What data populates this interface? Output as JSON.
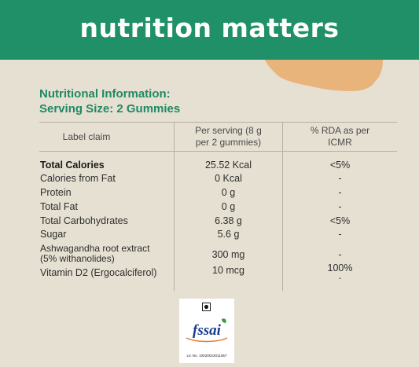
{
  "header": {
    "title": "nutrition matters"
  },
  "info": {
    "line1": "Nutritional Information:",
    "line2": "Serving Size: 2 Gummies"
  },
  "table": {
    "headers": {
      "label": "Label claim",
      "per_serving_1": "Per serving (8 g",
      "per_serving_2": "per 2 gummies)",
      "rda_1": "% RDA as per",
      "rda_2": "ICMR"
    },
    "rows": [
      {
        "label": "Total Calories",
        "value": "25.52 Kcal",
        "rda": "<5%"
      },
      {
        "label": "Calories from Fat",
        "value": "0 Kcal",
        "rda": "-"
      },
      {
        "label": "Protein",
        "value": "0 g",
        "rda": "-"
      },
      {
        "label": "Total Fat",
        "value": "0 g",
        "rda": "-"
      },
      {
        "label": "Total Carbohydrates",
        "value": "6.38 g",
        "rda": "<5%"
      },
      {
        "label": "Sugar",
        "value": "5.6 g",
        "rda": "-"
      },
      {
        "label": "Ashwagandha root extract",
        "label2": "(5% withanolides)",
        "value": "300 mg",
        "rda": "-"
      },
      {
        "label": "Vitamin D2 (Ergocalciferol)",
        "value": "10 mcg",
        "rda": "100%",
        "rda2": "-"
      }
    ]
  },
  "logo": {
    "text": "fssai",
    "license": "Lic No. 10020022011557"
  },
  "colors": {
    "header": "#1f9068",
    "background": "#e6e0d2",
    "accent_text": "#1f8a63",
    "blob": "#e8b47c"
  }
}
